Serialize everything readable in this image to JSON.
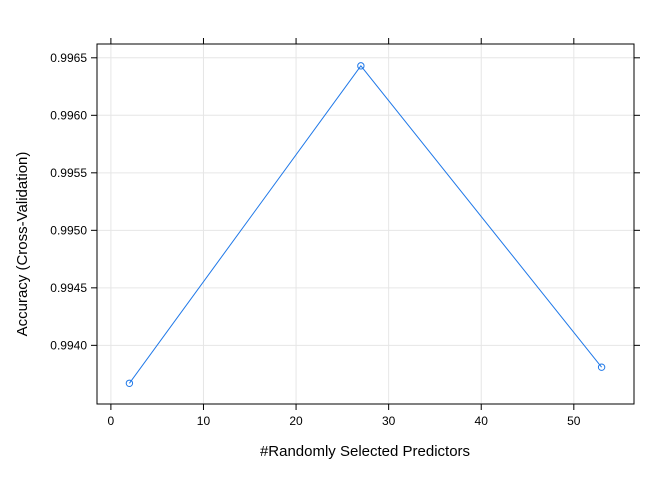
{
  "chart_data": {
    "type": "line",
    "title": "",
    "xlabel": "#Randomly Selected Predictors",
    "ylabel": "Accuracy (Cross-Validation)",
    "x": [
      2,
      27,
      53
    ],
    "series": [
      {
        "values": [
          0.99367,
          0.99643,
          0.99381
        ]
      }
    ],
    "xlim": [
      -1.5,
      56.5
    ],
    "ylim": [
      0.99349,
      0.99662
    ],
    "xticks": [
      0,
      10,
      20,
      30,
      40,
      50
    ],
    "xtick_labels": [
      "0",
      "10",
      "20",
      "30",
      "40",
      "50"
    ],
    "yticks": [
      0.994,
      0.9945,
      0.995,
      0.9955,
      0.996,
      0.9965
    ],
    "ytick_labels": [
      "0.9940",
      "0.9945",
      "0.9950",
      "0.9955",
      "0.9960",
      "0.9965"
    ],
    "grid": true,
    "colors": {
      "series": "#1f78e8",
      "grid": "#e6e6e6",
      "frame": "#000000"
    }
  }
}
